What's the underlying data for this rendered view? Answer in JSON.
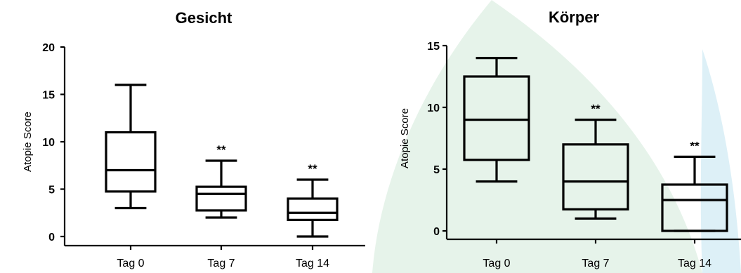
{
  "chart_data": [
    {
      "type": "box",
      "title": "Gesicht",
      "ylabel": "Atopie Score",
      "xlabel": "",
      "ylim": [
        0,
        20
      ],
      "yticks": [
        0,
        5,
        10,
        15,
        20
      ],
      "categories": [
        "Tag 0",
        "Tag 7",
        "Tag 14"
      ],
      "boxes": [
        {
          "category": "Tag 0",
          "min": 3,
          "q1": 4.75,
          "median": 7,
          "q3": 11,
          "max": 16,
          "annotation": ""
        },
        {
          "category": "Tag 7",
          "min": 2,
          "q1": 2.75,
          "median": 4.5,
          "q3": 5.25,
          "max": 8,
          "annotation": "**"
        },
        {
          "category": "Tag 14",
          "min": 0,
          "q1": 1.75,
          "median": 2.5,
          "q3": 4,
          "max": 6,
          "annotation": "**"
        }
      ]
    },
    {
      "type": "box",
      "title": "Körper",
      "ylabel": "Atopie Score",
      "xlabel": "",
      "ylim": [
        0,
        15
      ],
      "yticks": [
        0,
        5,
        10,
        15
      ],
      "categories": [
        "Tag 0",
        "Tag 7",
        "Tag 14"
      ],
      "boxes": [
        {
          "category": "Tag 0",
          "min": 4,
          "q1": 5.75,
          "median": 9,
          "q3": 12.5,
          "max": 14,
          "annotation": ""
        },
        {
          "category": "Tag 7",
          "min": 1,
          "q1": 1.75,
          "median": 4,
          "q3": 7,
          "max": 9,
          "annotation": "**"
        },
        {
          "category": "Tag 14",
          "min": 0,
          "q1": 0,
          "median": 2.5,
          "q3": 3.75,
          "max": 6,
          "annotation": "**"
        }
      ]
    }
  ],
  "background": {
    "shape_colors": [
      "#e6f3ea",
      "#ddf0f7"
    ]
  }
}
